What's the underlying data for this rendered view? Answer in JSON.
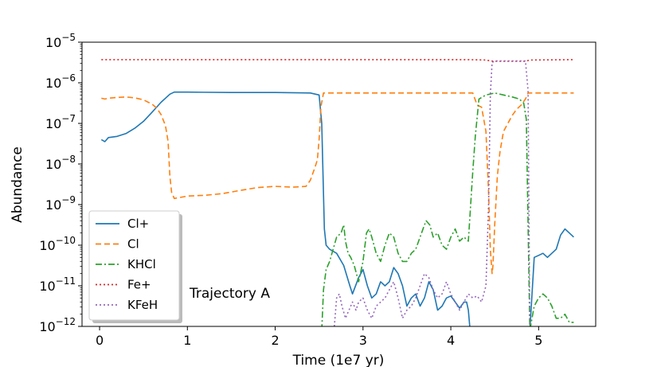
{
  "chart_data": {
    "type": "line",
    "title": "",
    "xlabel": "Time (1e7 yr)",
    "ylabel": "Abundance",
    "xlim": [
      -0.2,
      5.65
    ],
    "ylim_exp": [
      -12,
      -5
    ],
    "yscale": "log",
    "x_ticks": [
      0,
      1,
      2,
      3,
      4,
      5
    ],
    "y_ticks_exp": [
      -12,
      -11,
      -10,
      -9,
      -8,
      -7,
      -6,
      -5
    ],
    "annotation": "Trajectory A",
    "legend_position": "lower-left",
    "series": [
      {
        "name": "Cl+",
        "color": "#1f77b4",
        "dash": "",
        "points": [
          [
            0.02,
            -7.4
          ],
          [
            0.06,
            -7.45
          ],
          [
            0.1,
            -7.35
          ],
          [
            0.2,
            -7.32
          ],
          [
            0.3,
            -7.25
          ],
          [
            0.4,
            -7.12
          ],
          [
            0.5,
            -6.95
          ],
          [
            0.6,
            -6.72
          ],
          [
            0.7,
            -6.48
          ],
          [
            0.8,
            -6.28
          ],
          [
            0.85,
            -6.23
          ],
          [
            1.0,
            -6.23
          ],
          [
            1.5,
            -6.24
          ],
          [
            2.0,
            -6.24
          ],
          [
            2.4,
            -6.25
          ],
          [
            2.5,
            -6.3
          ],
          [
            2.53,
            -7.0
          ],
          [
            2.56,
            -9.6
          ],
          [
            2.58,
            -10.0
          ],
          [
            2.62,
            -10.1
          ],
          [
            2.7,
            -10.2
          ],
          [
            2.78,
            -10.5
          ],
          [
            2.85,
            -11.0
          ],
          [
            2.88,
            -11.2
          ],
          [
            2.95,
            -10.8
          ],
          [
            3.0,
            -10.6
          ],
          [
            3.05,
            -11.0
          ],
          [
            3.1,
            -11.3
          ],
          [
            3.15,
            -11.2
          ],
          [
            3.2,
            -10.9
          ],
          [
            3.25,
            -11.0
          ],
          [
            3.3,
            -10.9
          ],
          [
            3.35,
            -10.55
          ],
          [
            3.4,
            -10.7
          ],
          [
            3.45,
            -11.0
          ],
          [
            3.5,
            -11.5
          ],
          [
            3.55,
            -11.3
          ],
          [
            3.6,
            -11.2
          ],
          [
            3.65,
            -11.5
          ],
          [
            3.7,
            -11.3
          ],
          [
            3.75,
            -10.9
          ],
          [
            3.8,
            -11.1
          ],
          [
            3.85,
            -11.6
          ],
          [
            3.9,
            -11.5
          ],
          [
            3.95,
            -11.3
          ],
          [
            4.0,
            -11.25
          ],
          [
            4.05,
            -11.4
          ],
          [
            4.1,
            -11.55
          ],
          [
            4.15,
            -11.4
          ],
          [
            4.18,
            -11.4
          ],
          [
            4.2,
            -11.6
          ],
          [
            4.22,
            -12.1
          ],
          [
            4.9,
            -12.1
          ],
          [
            4.95,
            -10.3
          ],
          [
            5.0,
            -10.25
          ],
          [
            5.05,
            -10.2
          ],
          [
            5.1,
            -10.3
          ],
          [
            5.2,
            -10.1
          ],
          [
            5.25,
            -9.75
          ],
          [
            5.3,
            -9.6
          ],
          [
            5.35,
            -9.7
          ],
          [
            5.4,
            -9.8
          ]
        ]
      },
      {
        "name": "Cl",
        "color": "#ff7f0e",
        "dash": "7 4",
        "points": [
          [
            0.02,
            -6.38
          ],
          [
            0.06,
            -6.4
          ],
          [
            0.1,
            -6.38
          ],
          [
            0.2,
            -6.36
          ],
          [
            0.3,
            -6.35
          ],
          [
            0.4,
            -6.37
          ],
          [
            0.5,
            -6.42
          ],
          [
            0.6,
            -6.53
          ],
          [
            0.65,
            -6.62
          ],
          [
            0.7,
            -6.78
          ],
          [
            0.75,
            -7.05
          ],
          [
            0.78,
            -7.45
          ],
          [
            0.8,
            -8.3
          ],
          [
            0.82,
            -8.7
          ],
          [
            0.85,
            -8.85
          ],
          [
            1.0,
            -8.79
          ],
          [
            1.2,
            -8.77
          ],
          [
            1.4,
            -8.73
          ],
          [
            1.6,
            -8.65
          ],
          [
            1.8,
            -8.58
          ],
          [
            2.0,
            -8.55
          ],
          [
            2.2,
            -8.57
          ],
          [
            2.35,
            -8.55
          ],
          [
            2.4,
            -8.4
          ],
          [
            2.45,
            -8.1
          ],
          [
            2.48,
            -7.9
          ],
          [
            2.5,
            -7.4
          ],
          [
            2.52,
            -6.6
          ],
          [
            2.55,
            -6.25
          ],
          [
            4.25,
            -6.25
          ],
          [
            4.3,
            -6.55
          ],
          [
            4.35,
            -6.6
          ],
          [
            4.4,
            -7.2
          ],
          [
            4.43,
            -8.7
          ],
          [
            4.45,
            -10.1
          ],
          [
            4.47,
            -10.7
          ],
          [
            4.48,
            -10.5
          ],
          [
            4.5,
            -9.5
          ],
          [
            4.53,
            -8.3
          ],
          [
            4.56,
            -7.7
          ],
          [
            4.6,
            -7.2
          ],
          [
            4.65,
            -7.0
          ],
          [
            4.7,
            -6.8
          ],
          [
            4.75,
            -6.65
          ],
          [
            4.8,
            -6.55
          ],
          [
            4.85,
            -6.4
          ],
          [
            4.88,
            -6.25
          ],
          [
            5.4,
            -6.25
          ]
        ]
      },
      {
        "name": "KHCl",
        "color": "#2ca02c",
        "dash": "8 3 2 3",
        "points": [
          [
            2.53,
            -12.1
          ],
          [
            2.55,
            -11.1
          ],
          [
            2.58,
            -10.6
          ],
          [
            2.62,
            -10.4
          ],
          [
            2.66,
            -10.1
          ],
          [
            2.7,
            -9.8
          ],
          [
            2.75,
            -9.7
          ],
          [
            2.78,
            -9.5
          ],
          [
            2.8,
            -9.9
          ],
          [
            2.83,
            -10.2
          ],
          [
            2.86,
            -10.3
          ],
          [
            2.9,
            -10.5
          ],
          [
            2.95,
            -10.9
          ],
          [
            3.0,
            -10.4
          ],
          [
            3.04,
            -9.7
          ],
          [
            3.07,
            -9.6
          ],
          [
            3.1,
            -9.8
          ],
          [
            3.15,
            -10.2
          ],
          [
            3.2,
            -10.4
          ],
          [
            3.25,
            -10.0
          ],
          [
            3.3,
            -9.7
          ],
          [
            3.35,
            -9.8
          ],
          [
            3.4,
            -10.2
          ],
          [
            3.45,
            -10.4
          ],
          [
            3.5,
            -10.4
          ],
          [
            3.55,
            -10.2
          ],
          [
            3.6,
            -10.1
          ],
          [
            3.65,
            -9.8
          ],
          [
            3.7,
            -9.5
          ],
          [
            3.72,
            -9.4
          ],
          [
            3.76,
            -9.5
          ],
          [
            3.8,
            -9.8
          ],
          [
            3.85,
            -9.7
          ],
          [
            3.9,
            -10.0
          ],
          [
            3.95,
            -10.1
          ],
          [
            4.0,
            -9.8
          ],
          [
            4.05,
            -9.6
          ],
          [
            4.1,
            -9.9
          ],
          [
            4.15,
            -9.8
          ],
          [
            4.2,
            -9.9
          ],
          [
            4.25,
            -8.2
          ],
          [
            4.28,
            -7.3
          ],
          [
            4.32,
            -6.4
          ],
          [
            4.4,
            -6.3
          ],
          [
            4.5,
            -6.25
          ],
          [
            4.6,
            -6.3
          ],
          [
            4.7,
            -6.35
          ],
          [
            4.78,
            -6.4
          ],
          [
            4.83,
            -6.5
          ],
          [
            4.86,
            -6.9
          ],
          [
            4.9,
            -12.1
          ],
          [
            4.95,
            -11.5
          ],
          [
            5.0,
            -11.3
          ],
          [
            5.05,
            -11.2
          ],
          [
            5.1,
            -11.3
          ],
          [
            5.15,
            -11.5
          ],
          [
            5.2,
            -11.8
          ],
          [
            5.25,
            -11.8
          ],
          [
            5.3,
            -11.7
          ],
          [
            5.35,
            -11.9
          ],
          [
            5.4,
            -11.9
          ]
        ]
      },
      {
        "name": "Fe+",
        "color": "#d62728",
        "dash": "2 3",
        "points": [
          [
            0.02,
            -5.43
          ],
          [
            4.2,
            -5.43
          ],
          [
            4.4,
            -5.44
          ],
          [
            4.45,
            -5.46
          ],
          [
            4.5,
            -5.47
          ],
          [
            4.85,
            -5.47
          ],
          [
            4.9,
            -5.44
          ],
          [
            5.4,
            -5.43
          ]
        ]
      },
      {
        "name": "KFeH",
        "color": "#9467bd",
        "dash": "2 3",
        "points": [
          [
            2.67,
            -12.1
          ],
          [
            2.7,
            -11.3
          ],
          [
            2.73,
            -11.2
          ],
          [
            2.76,
            -11.5
          ],
          [
            2.8,
            -11.8
          ],
          [
            2.84,
            -11.6
          ],
          [
            2.88,
            -11.4
          ],
          [
            2.92,
            -11.6
          ],
          [
            2.95,
            -11.4
          ],
          [
            3.0,
            -11.3
          ],
          [
            3.05,
            -11.6
          ],
          [
            3.1,
            -11.8
          ],
          [
            3.15,
            -11.5
          ],
          [
            3.2,
            -11.4
          ],
          [
            3.25,
            -11.3
          ],
          [
            3.3,
            -11.1
          ],
          [
            3.35,
            -10.9
          ],
          [
            3.4,
            -11.3
          ],
          [
            3.45,
            -11.8
          ],
          [
            3.5,
            -11.6
          ],
          [
            3.55,
            -11.5
          ],
          [
            3.6,
            -11.3
          ],
          [
            3.65,
            -11.0
          ],
          [
            3.7,
            -10.7
          ],
          [
            3.75,
            -10.8
          ],
          [
            3.8,
            -11.1
          ],
          [
            3.85,
            -11.3
          ],
          [
            3.9,
            -11.2
          ],
          [
            3.95,
            -10.9
          ],
          [
            4.0,
            -11.2
          ],
          [
            4.05,
            -11.4
          ],
          [
            4.1,
            -11.6
          ],
          [
            4.15,
            -11.4
          ],
          [
            4.2,
            -11.2
          ],
          [
            4.25,
            -11.3
          ],
          [
            4.3,
            -11.25
          ],
          [
            4.35,
            -11.4
          ],
          [
            4.4,
            -11.0
          ],
          [
            4.43,
            -9.0
          ],
          [
            4.45,
            -6.3
          ],
          [
            4.47,
            -5.5
          ],
          [
            4.5,
            -5.46
          ],
          [
            4.85,
            -5.46
          ],
          [
            4.88,
            -6.2
          ],
          [
            4.9,
            -12.1
          ]
        ]
      }
    ]
  }
}
